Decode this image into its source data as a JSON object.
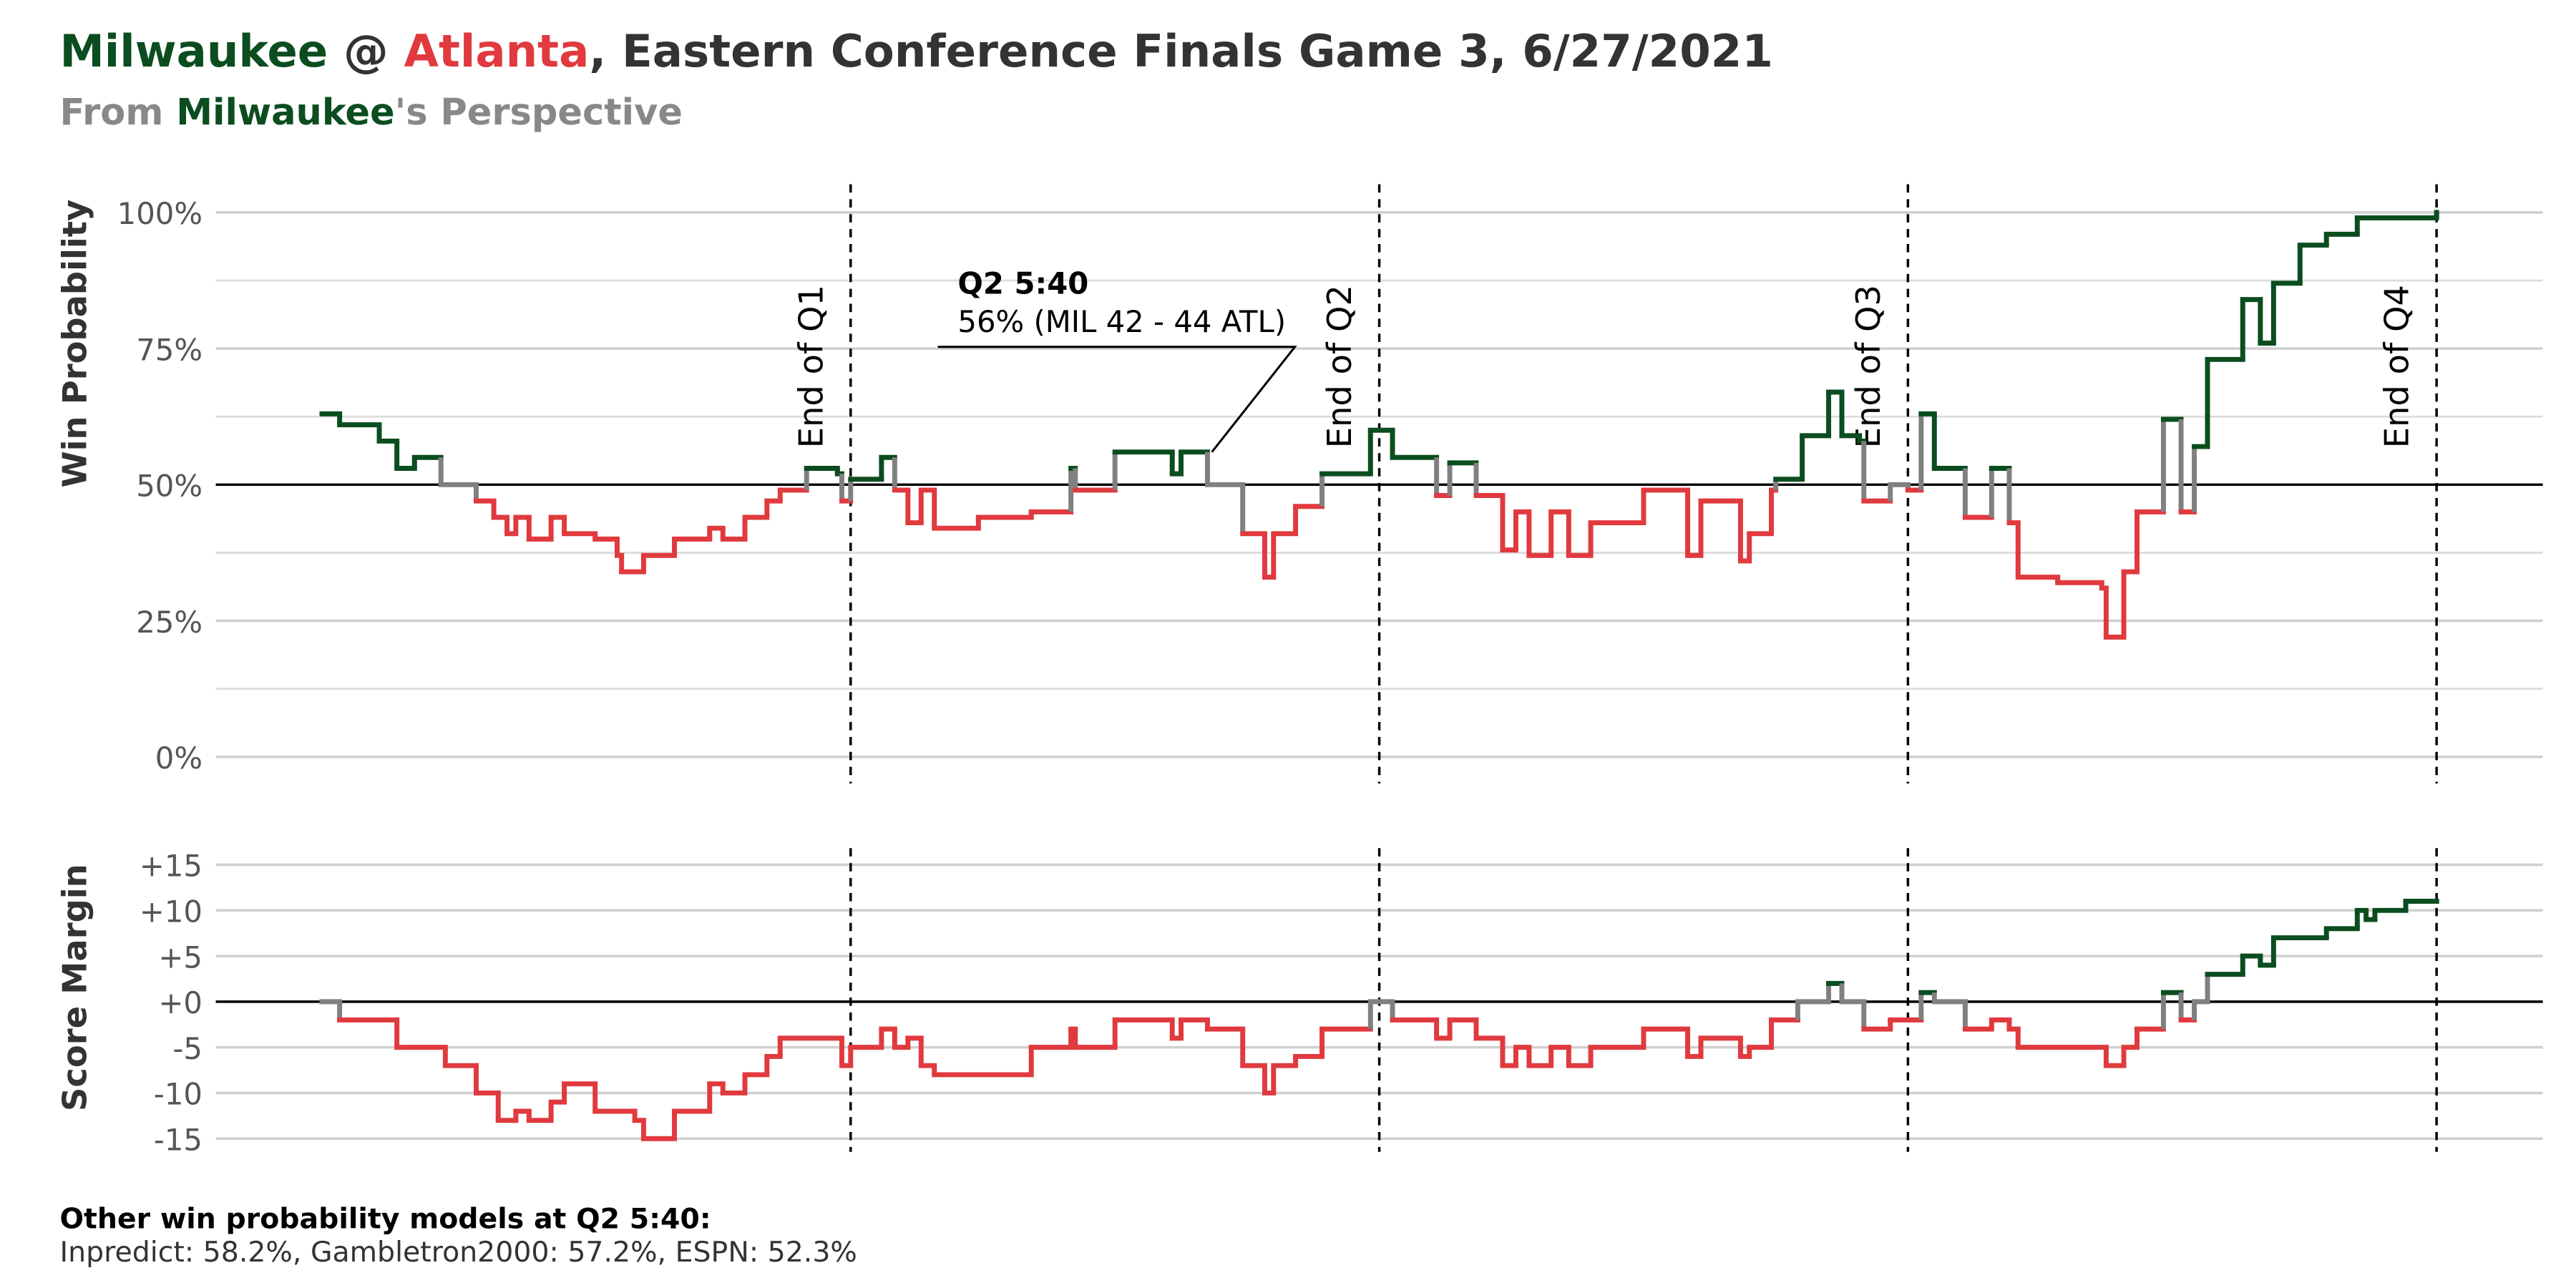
{
  "title": [
    {
      "text": "Milwaukee",
      "color": "#0b4d1f"
    },
    {
      "text": " @ ",
      "color": "#333333"
    },
    {
      "text": "Atlanta",
      "color": "#e03a3e"
    },
    {
      "text": ", Eastern Conference Finals Game 3, 6/27/2021",
      "color": "#333333"
    }
  ],
  "subtitle": [
    {
      "text": "From ",
      "color": "#888888"
    },
    {
      "text": "Milwaukee",
      "color": "#0b4d1f"
    },
    {
      "text": "'s Perspective",
      "color": "#888888"
    }
  ],
  "footer": {
    "heading": "Other win probability models at Q2 5:40:",
    "text": "Inpredict: 58.2%, Gambletron2000: 57.2%, ESPN: 52.3%"
  },
  "chart_data": [
    {
      "type": "step",
      "y_label": "Win Probability",
      "xlim": [
        0,
        48
      ],
      "ylim": [
        0,
        100
      ],
      "yticks": [
        {
          "value": 0,
          "label": "0%"
        },
        {
          "value": 25,
          "label": "25%"
        },
        {
          "value": 50,
          "label": "50%"
        },
        {
          "value": 75,
          "label": "75%"
        },
        {
          "value": 100,
          "label": "100%"
        }
      ],
      "minor_yticks": [
        12.5,
        37.5,
        62.5,
        87.5
      ],
      "grid": true,
      "hline": 50,
      "colors": {
        "above": "#0b4d1f",
        "below": "#e03a3e",
        "crossing": "#808080"
      },
      "vlines": [
        {
          "value": 12,
          "label": "End of Q1"
        },
        {
          "value": 24,
          "label": "End of Q2"
        },
        {
          "value": 36,
          "label": "End of Q3"
        },
        {
          "value": 48,
          "label": "End of Q4"
        }
      ],
      "annotation": {
        "title": "Q2 5:40",
        "text": "56% (MIL 42 - 44 ATL)",
        "x": 20.2,
        "y": 56
      },
      "x": [
        0,
        0.4,
        1.3,
        1.7,
        2.1,
        2.7,
        3.5,
        3.9,
        4.2,
        4.4,
        4.7,
        5.2,
        5.5,
        6.2,
        6.7,
        6.8,
        7.3,
        8.0,
        8.8,
        9.1,
        9.6,
        10.1,
        10.4,
        11.0,
        11.7,
        11.8,
        12.0,
        12.7,
        13.0,
        13.3,
        13.6,
        13.9,
        14.9,
        16.1,
        17.0,
        17.1,
        18.0,
        19.3,
        19.5,
        20.1,
        20.9,
        21.4,
        21.6,
        22.1,
        22.7,
        23.8,
        24.3,
        25.3,
        25.6,
        26.2,
        26.8,
        27.1,
        27.4,
        27.9,
        28.3,
        28.8,
        30.0,
        31.0,
        31.3,
        32.2,
        32.4,
        32.9,
        33.0,
        33.6,
        34.2,
        34.5,
        34.9,
        35.0,
        35.6,
        36.0,
        36.3,
        36.6,
        37.3,
        37.9,
        38.3,
        38.5,
        39.4,
        40.4,
        40.5,
        40.9,
        41.2,
        41.8,
        42.2,
        42.5,
        42.8,
        43.6,
        44.0,
        44.3,
        44.9,
        45.5,
        46.2,
        48.0
      ],
      "values": [
        63,
        61,
        58,
        53,
        55,
        50,
        47,
        44,
        41,
        44,
        40,
        44,
        41,
        40,
        37,
        34,
        37,
        40,
        42,
        40,
        44,
        47,
        49,
        53,
        52,
        47,
        51,
        55,
        49,
        43,
        49,
        42,
        44,
        45,
        53,
        49,
        56,
        52,
        56,
        50,
        41,
        33,
        41,
        46,
        52,
        60,
        55,
        48,
        54,
        48,
        38,
        45,
        37,
        45,
        37,
        43,
        49,
        37,
        47,
        36,
        41,
        49,
        51,
        59,
        67,
        59,
        58,
        47,
        50,
        49,
        63,
        53,
        44,
        53,
        43,
        33,
        32,
        31,
        22,
        34,
        45,
        62,
        45,
        57,
        73,
        84,
        76,
        87,
        94,
        96,
        99,
        100
      ]
    },
    {
      "type": "step",
      "y_label": "Score Margin",
      "xlim": [
        0,
        48
      ],
      "ylim": [
        -15,
        15
      ],
      "yticks": [
        {
          "value": -15,
          "label": "-15"
        },
        {
          "value": -10,
          "label": "-10"
        },
        {
          "value": -5,
          "label": "-5"
        },
        {
          "value": 0,
          "label": "+0"
        },
        {
          "value": 5,
          "label": "+5"
        },
        {
          "value": 10,
          "label": "+10"
        },
        {
          "value": 15,
          "label": "+15"
        }
      ],
      "grid": true,
      "hline": 0,
      "colors": {
        "above": "#0b4d1f",
        "below": "#e03a3e",
        "crossing": "#808080"
      },
      "vlines": [
        12,
        24,
        36,
        48
      ],
      "x": [
        0,
        0.4,
        1.7,
        2.8,
        3.5,
        4.0,
        4.4,
        4.7,
        5.2,
        5.5,
        6.2,
        7.1,
        7.3,
        8.0,
        8.8,
        9.1,
        9.6,
        10.1,
        10.4,
        11.8,
        12.0,
        12.7,
        13.0,
        13.3,
        13.6,
        13.9,
        16.1,
        17.0,
        17.1,
        18.0,
        19.3,
        19.5,
        20.1,
        20.9,
        21.4,
        21.6,
        22.1,
        22.7,
        23.8,
        24.3,
        25.3,
        25.6,
        26.2,
        26.8,
        27.1,
        27.4,
        27.9,
        28.3,
        28.8,
        30.0,
        31.0,
        31.3,
        32.2,
        32.4,
        32.9,
        33.5,
        34.2,
        34.5,
        35.0,
        35.6,
        36.3,
        36.6,
        37.3,
        37.9,
        38.3,
        38.5,
        40.5,
        40.9,
        41.2,
        41.8,
        42.2,
        42.5,
        42.8,
        43.6,
        44.0,
        44.3,
        45.5,
        46.2,
        46.4,
        46.6,
        47.3,
        48.0
      ],
      "values": [
        0,
        -2,
        -5,
        -7,
        -10,
        -13,
        -12,
        -13,
        -11,
        -9,
        -12,
        -13,
        -15,
        -12,
        -9,
        -10,
        -8,
        -6,
        -4,
        -7,
        -5,
        -3,
        -5,
        -4,
        -7,
        -8,
        -5,
        -3,
        -5,
        -2,
        -4,
        -2,
        -3,
        -7,
        -10,
        -7,
        -6,
        -3,
        0,
        -2,
        -4,
        -2,
        -4,
        -7,
        -5,
        -7,
        -5,
        -7,
        -5,
        -3,
        -6,
        -4,
        -6,
        -5,
        -2,
        0,
        2,
        0,
        -3,
        -2,
        1,
        0,
        -3,
        -2,
        -3,
        -5,
        -7,
        -5,
        -3,
        1,
        -2,
        0,
        3,
        5,
        4,
        7,
        8,
        10,
        9,
        10,
        11,
        11
      ]
    }
  ]
}
